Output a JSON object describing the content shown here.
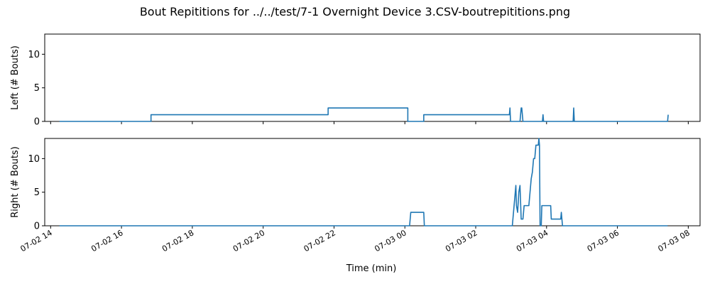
{
  "chart_data": {
    "type": "line",
    "title": "Bout Repititions for ../../test/7-1 Overnight Device 3.CSV-boutrepititions.png",
    "xlabel": "Time (min)",
    "x_range": [
      "07-02 13:50",
      "07-03 08:20"
    ],
    "x_ticks": [
      {
        "t": "07-02 14:00",
        "label": "07-02 14"
      },
      {
        "t": "07-02 16:00",
        "label": "07-02 16"
      },
      {
        "t": "07-02 18:00",
        "label": "07-02 18"
      },
      {
        "t": "07-02 20:00",
        "label": "07-02 20"
      },
      {
        "t": "07-02 22:00",
        "label": "07-02 22"
      },
      {
        "t": "07-03 00:00",
        "label": "07-03 00"
      },
      {
        "t": "07-03 02:00",
        "label": "07-03 02"
      },
      {
        "t": "07-03 04:00",
        "label": "07-03 04"
      },
      {
        "t": "07-03 06:00",
        "label": "07-03 06"
      },
      {
        "t": "07-03 08:00",
        "label": "07-03 08"
      }
    ],
    "color": "#1f77b4",
    "grid": false,
    "subplots": [
      {
        "ylabel": "Left (# Bouts)",
        "ylim": [
          0,
          13
        ],
        "yticks": [
          0,
          5,
          10
        ],
        "show_x_tick_labels": false,
        "series": [
          {
            "points": [
              [
                "07-02 14:15",
                0
              ],
              [
                "07-02 16:50",
                0
              ],
              [
                "07-02 16:50",
                1
              ],
              [
                "07-02 21:50",
                1
              ],
              [
                "07-02 21:50",
                2
              ],
              [
                "07-03 00:05",
                2
              ],
              [
                "07-03 00:05",
                0
              ],
              [
                "07-03 00:32",
                0
              ],
              [
                "07-03 00:32",
                1
              ],
              [
                "07-03 02:57",
                1
              ],
              [
                "07-03 02:58",
                2
              ],
              [
                "07-03 02:59",
                0
              ],
              [
                "07-03 03:15",
                0
              ],
              [
                "07-03 03:17",
                2
              ],
              [
                "07-03 03:18",
                2
              ],
              [
                "07-03 03:20",
                0
              ],
              [
                "07-03 03:53",
                0
              ],
              [
                "07-03 03:54",
                1
              ],
              [
                "07-03 03:55",
                0
              ],
              [
                "07-03 04:45",
                0
              ],
              [
                "07-03 04:46",
                2
              ],
              [
                "07-03 04:47",
                0
              ],
              [
                "07-03 07:25",
                0
              ],
              [
                "07-03 07:26",
                1
              ]
            ]
          }
        ]
      },
      {
        "ylabel": "Right (# Bouts)",
        "ylim": [
          0,
          13
        ],
        "yticks": [
          0,
          5,
          10
        ],
        "show_x_tick_labels": true,
        "series": [
          {
            "points": [
              [
                "07-02 14:15",
                0
              ],
              [
                "07-03 00:08",
                0
              ],
              [
                "07-03 00:10",
                2
              ],
              [
                "07-03 00:32",
                2
              ],
              [
                "07-03 00:33",
                0
              ],
              [
                "07-03 03:02",
                0
              ],
              [
                "07-03 03:05",
                3
              ],
              [
                "07-03 03:06",
                4
              ],
              [
                "07-03 03:08",
                6
              ],
              [
                "07-03 03:09",
                3
              ],
              [
                "07-03 03:11",
                2
              ],
              [
                "07-03 03:13",
                5
              ],
              [
                "07-03 03:15",
                6
              ],
              [
                "07-03 03:17",
                1
              ],
              [
                "07-03 03:20",
                1
              ],
              [
                "07-03 03:22",
                3
              ],
              [
                "07-03 03:30",
                3
              ],
              [
                "07-03 03:32",
                5
              ],
              [
                "07-03 03:34",
                7
              ],
              [
                "07-03 03:36",
                8
              ],
              [
                "07-03 03:38",
                10
              ],
              [
                "07-03 03:40",
                10
              ],
              [
                "07-03 03:42",
                12
              ],
              [
                "07-03 03:46",
                12
              ],
              [
                "07-03 03:47",
                13
              ],
              [
                "07-03 03:48",
                12
              ],
              [
                "07-03 03:49",
                0
              ],
              [
                "07-03 03:51",
                0
              ],
              [
                "07-03 03:52",
                3
              ],
              [
                "07-03 04:07",
                3
              ],
              [
                "07-03 04:08",
                1
              ],
              [
                "07-03 04:24",
                1
              ],
              [
                "07-03 04:25",
                2
              ],
              [
                "07-03 04:26",
                1
              ],
              [
                "07-03 04:27",
                0
              ],
              [
                "07-03 07:25",
                0
              ]
            ]
          }
        ]
      }
    ]
  }
}
